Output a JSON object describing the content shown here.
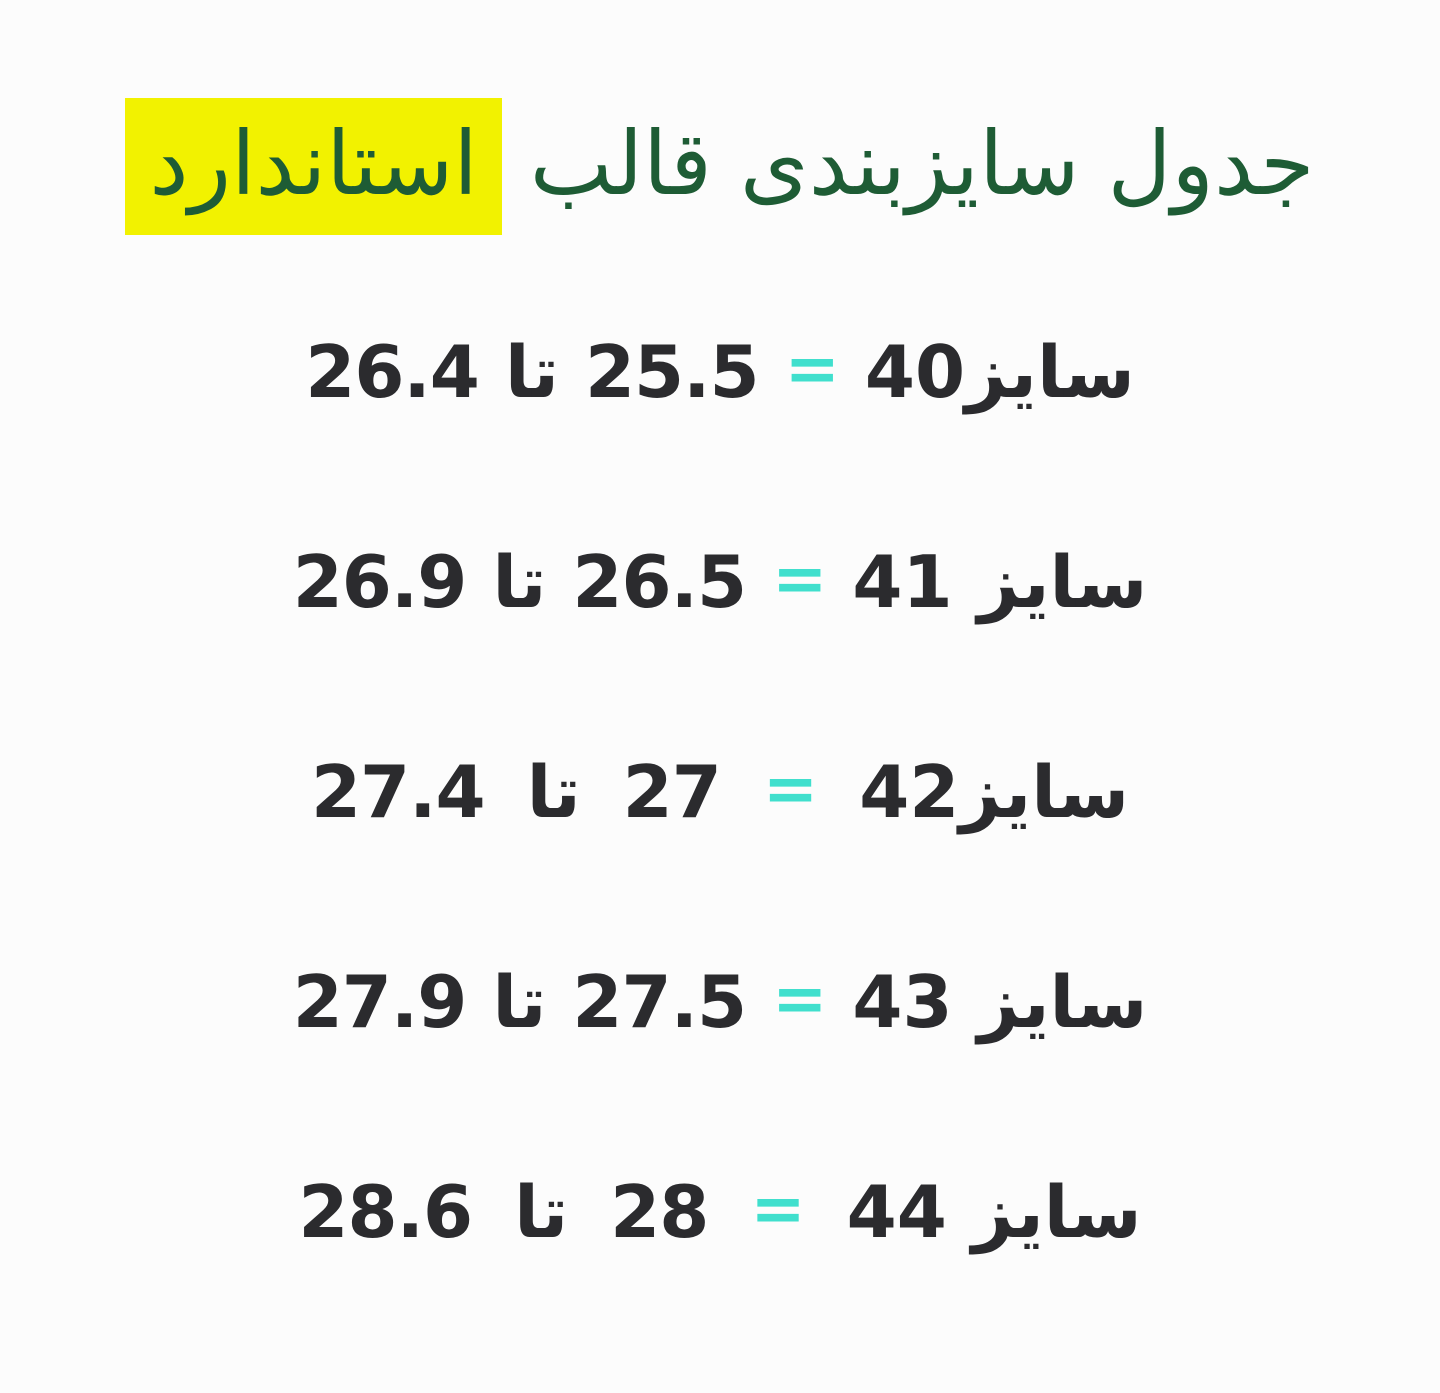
{
  "canvas": {
    "background": "#FCFCFC"
  },
  "title": {
    "text": "جدول سایزبندی قالب",
    "highlighted_word": "استاندارد",
    "text_color": "#1E5C35",
    "highlight_color": "#F2F200"
  },
  "table": {
    "text_color": "#2B2B2E",
    "equals_color": "#40DFCD",
    "rows": [
      {
        "label": "سایز40",
        "equals": "=",
        "from": "25.5",
        "to_word": "تا",
        "to": "26.4"
      },
      {
        "label": "سایز 41",
        "equals": "=",
        "from": "26.5",
        "to_word": "تا",
        "to": "26.9"
      },
      {
        "label": "سایز42",
        "equals": "=",
        "from": "27",
        "to_word": "تا",
        "to": "27.4"
      },
      {
        "label": "سایز 43",
        "equals": "=",
        "from": "27.5",
        "to_word": "تا",
        "to": "27.9"
      },
      {
        "label": "سایز 44",
        "equals": "=",
        "from": "28",
        "to_word": "تا",
        "to": "28.6"
      }
    ]
  }
}
